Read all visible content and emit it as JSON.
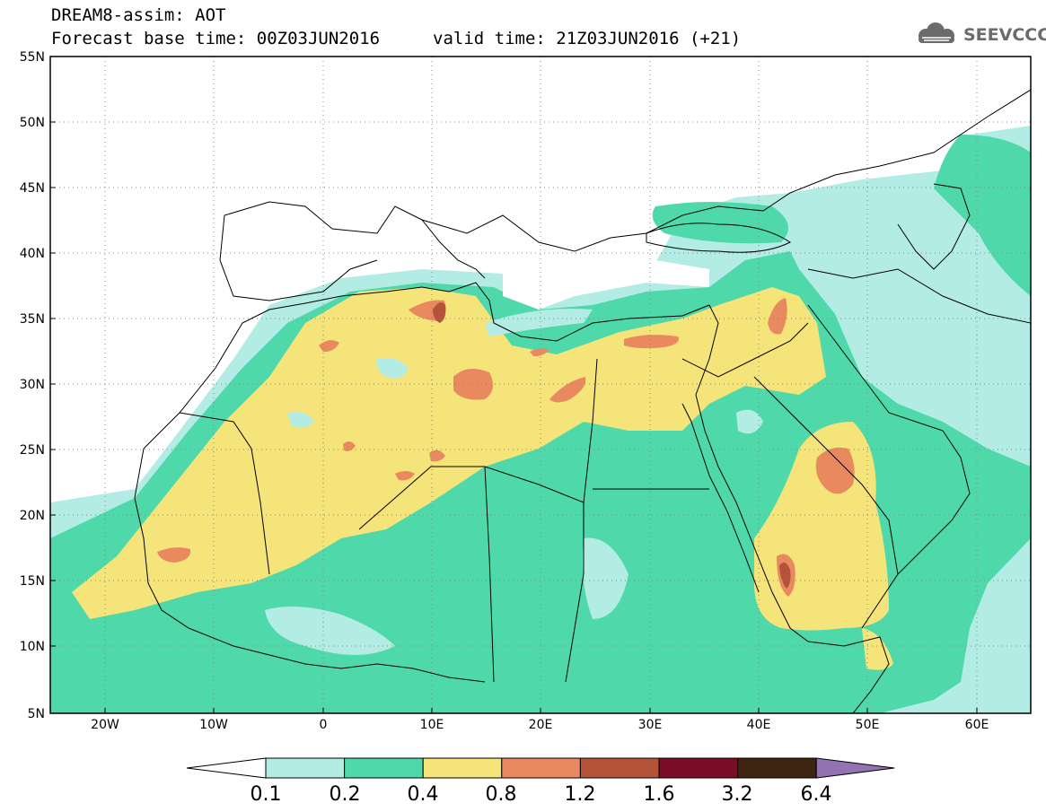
{
  "header": {
    "title_line1": "DREAM8-assim: AOT",
    "title_line2": "Forecast base time: 00Z03JUN2016",
    "valid_time": "valid time: 21Z03JUN2016 (+21)",
    "logo_text": "SEEVCCC",
    "logo_icon": "cloud-icon"
  },
  "map": {
    "lat_range": [
      5,
      55
    ],
    "lon_range": [
      -25,
      65
    ],
    "lat_labels": [
      "55N",
      "50N",
      "45N",
      "40N",
      "35N",
      "30N",
      "25N",
      "20N",
      "15N",
      "10N",
      "5N"
    ],
    "lon_labels": [
      "20W",
      "10W",
      "0",
      "10E",
      "20E",
      "30E",
      "40E",
      "50E",
      "60E"
    ],
    "grid": "dotted"
  },
  "legend": {
    "levels": [
      "0.1",
      "0.2",
      "0.4",
      "0.8",
      "1.2",
      "1.6",
      "3.2",
      "6.4"
    ],
    "colors": [
      "#ffffff",
      "#b3ece4",
      "#4fd9ab",
      "#f5e479",
      "#e8895f",
      "#b5533a",
      "#7a0e26",
      "#3d2512",
      "#9473b4"
    ]
  }
}
